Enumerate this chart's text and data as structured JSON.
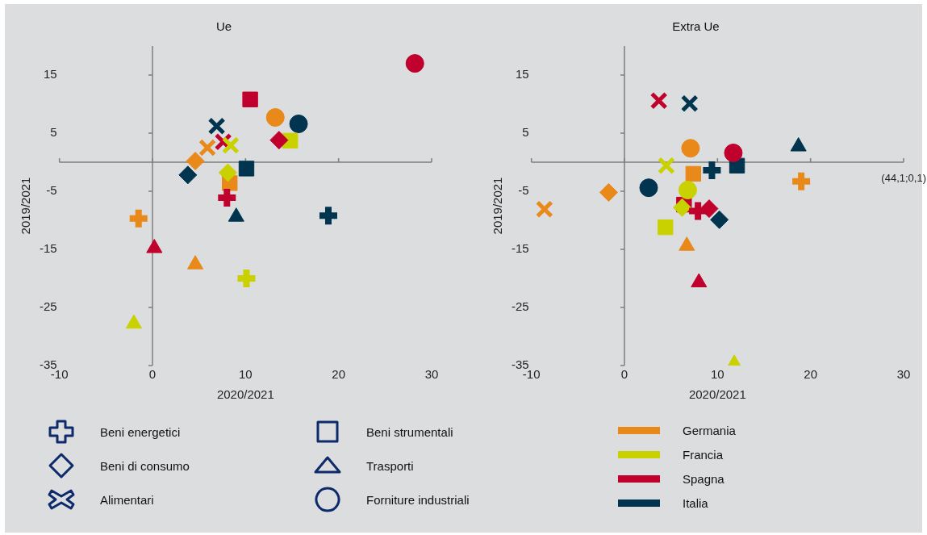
{
  "chart_data": [
    {
      "type": "scatter",
      "title": "Ue",
      "xlabel": "2020/2021",
      "ylabel": "2019/2021",
      "xlim": [
        -10,
        30
      ],
      "xticks": [
        -10,
        0,
        10,
        20,
        30
      ],
      "ylim": [
        -35,
        20
      ],
      "yticks": [
        -35,
        -25,
        -15,
        -5,
        5,
        15
      ],
      "annotations": [
        "Beni energetici",
        "Beni di consumo",
        "Alimentari",
        "Beni strumentali",
        "Trasporti",
        "Forniture industriali",
        "Germania",
        "Francia",
        "Spagna",
        "Italia"
      ],
      "series": [
        {
          "marker": "cross",
          "color": "#e8891a",
          "x": [
            -1.5
          ],
          "values": [
            -9.7
          ]
        },
        {
          "marker": "cross",
          "color": "#c9d200",
          "x": [
            10.1
          ],
          "values": [
            -20.0
          ]
        },
        {
          "marker": "cross",
          "color": "#c0002d",
          "x": [
            8.0
          ],
          "values": [
            -6.1
          ]
        },
        {
          "marker": "cross",
          "color": "#00344f",
          "x": [
            18.9
          ],
          "values": [
            -9.2
          ]
        },
        {
          "marker": "diamond",
          "color": "#e8891a",
          "x": [
            4.6
          ],
          "values": [
            0.2
          ]
        },
        {
          "marker": "diamond",
          "color": "#c9d200",
          "x": [
            8.1
          ],
          "values": [
            -1.8
          ]
        },
        {
          "marker": "diamond",
          "color": "#c0002d",
          "x": [
            13.6
          ],
          "values": [
            3.8
          ]
        },
        {
          "marker": "diamond",
          "color": "#00344f",
          "x": [
            3.8
          ],
          "values": [
            -2.2
          ]
        },
        {
          "marker": "x",
          "color": "#e8891a",
          "x": [
            5.9
          ],
          "values": [
            2.5
          ]
        },
        {
          "marker": "x",
          "color": "#c9d200",
          "x": [
            8.4
          ],
          "values": [
            2.9
          ]
        },
        {
          "marker": "x",
          "color": "#c0002d",
          "x": [
            7.6
          ],
          "values": [
            3.5
          ]
        },
        {
          "marker": "x",
          "color": "#00344f",
          "x": [
            6.9
          ],
          "values": [
            6.2
          ]
        },
        {
          "marker": "square",
          "color": "#e8891a",
          "x": [
            8.3
          ],
          "values": [
            -3.6
          ]
        },
        {
          "marker": "square",
          "color": "#c9d200",
          "x": [
            14.8
          ],
          "values": [
            3.7
          ]
        },
        {
          "marker": "square",
          "color": "#c0002d",
          "x": [
            10.5
          ],
          "values": [
            10.8
          ]
        },
        {
          "marker": "square",
          "color": "#00344f",
          "x": [
            10.1
          ],
          "values": [
            -1.1
          ]
        },
        {
          "marker": "triangle",
          "color": "#e8891a",
          "x": [
            4.6
          ],
          "values": [
            -17.6
          ]
        },
        {
          "marker": "triangle",
          "color": "#c9d200",
          "x": [
            -2.0
          ],
          "values": [
            -27.8
          ]
        },
        {
          "marker": "triangle",
          "color": "#c0002d",
          "x": [
            0.2
          ],
          "values": [
            -14.8
          ]
        },
        {
          "marker": "triangle",
          "color": "#00344f",
          "x": [
            9.0
          ],
          "values": [
            -9.4
          ]
        },
        {
          "marker": "circle",
          "color": "#e8891a",
          "x": [
            13.2
          ],
          "values": [
            7.7
          ]
        },
        {
          "marker": "circle",
          "color": "#c0002d",
          "x": [
            28.2
          ],
          "values": [
            17.0
          ]
        },
        {
          "marker": "circle",
          "color": "#00344f",
          "x": [
            15.7
          ],
          "values": [
            6.6
          ]
        }
      ]
    },
    {
      "type": "scatter",
      "title": "Extra Ue",
      "xlabel": "2020/2021",
      "ylabel": "2019/2021",
      "xlim": [
        -10,
        30
      ],
      "xticks": [
        -10,
        0,
        10,
        20,
        30
      ],
      "ylim": [
        -35,
        20
      ],
      "yticks": [
        -35,
        -25,
        -15,
        -5,
        5,
        15
      ],
      "annotations": [
        "(44,1;0,1)"
      ],
      "series": [
        {
          "marker": "cross",
          "color": "#e8891a",
          "x": [
            19.0
          ],
          "values": [
            -3.3
          ]
        },
        {
          "marker": "cross",
          "color": "#c0002d",
          "x": [
            7.9
          ],
          "values": [
            -8.4
          ]
        },
        {
          "marker": "cross",
          "color": "#00344f",
          "x": [
            9.4
          ],
          "values": [
            -1.4
          ]
        },
        {
          "marker": "diamond",
          "color": "#e8891a",
          "x": [
            -1.7
          ],
          "values": [
            -5.2
          ]
        },
        {
          "marker": "diamond",
          "color": "#c9d200",
          "x": [
            6.2
          ],
          "values": [
            -7.8
          ]
        },
        {
          "marker": "diamond",
          "color": "#c0002d",
          "x": [
            9.1
          ],
          "values": [
            -8.0
          ]
        },
        {
          "marker": "diamond",
          "color": "#00344f",
          "x": [
            10.2
          ],
          "values": [
            -9.9
          ]
        },
        {
          "marker": "x",
          "color": "#e8891a",
          "x": [
            -8.6
          ],
          "values": [
            -8.1
          ]
        },
        {
          "marker": "x",
          "color": "#c9d200",
          "x": [
            4.5
          ],
          "values": [
            -0.6
          ]
        },
        {
          "marker": "x",
          "color": "#c0002d",
          "x": [
            3.7
          ],
          "values": [
            10.6
          ]
        },
        {
          "marker": "x",
          "color": "#00344f",
          "x": [
            7.0
          ],
          "values": [
            10.1
          ]
        },
        {
          "marker": "circle",
          "color": "#e8891a",
          "x": [
            7.1
          ],
          "values": [
            2.4
          ]
        },
        {
          "marker": "circle",
          "color": "#c9d200",
          "x": [
            6.8
          ],
          "values": [
            -4.8
          ]
        },
        {
          "marker": "circle",
          "color": "#c0002d",
          "x": [
            11.7
          ],
          "values": [
            1.6
          ]
        },
        {
          "marker": "circle",
          "color": "#00344f",
          "x": [
            2.6
          ],
          "values": [
            -4.4
          ]
        },
        {
          "marker": "square",
          "color": "#e8891a",
          "x": [
            7.4
          ],
          "values": [
            -2.0
          ]
        },
        {
          "marker": "square",
          "color": "#c9d200",
          "x": [
            4.4
          ],
          "values": [
            -11.2
          ]
        },
        {
          "marker": "square",
          "color": "#c0002d",
          "x": [
            6.4
          ],
          "values": [
            -7.3
          ]
        },
        {
          "marker": "square",
          "color": "#00344f",
          "x": [
            12.1
          ],
          "values": [
            -0.6
          ]
        },
        {
          "marker": "triangle",
          "color": "#e8891a",
          "x": [
            6.7
          ],
          "values": [
            -14.4
          ]
        },
        {
          "marker": "triangle",
          "color": "#c9d200",
          "x": [
            11.8
          ],
          "values": [
            -34.7
          ]
        },
        {
          "marker": "triangle",
          "color": "#c0002d",
          "x": [
            8.0
          ],
          "values": [
            -20.7
          ]
        },
        {
          "marker": "triangle",
          "color": "#00344f",
          "x": [
            18.7
          ],
          "values": [
            2.7
          ]
        }
      ]
    }
  ]
}
